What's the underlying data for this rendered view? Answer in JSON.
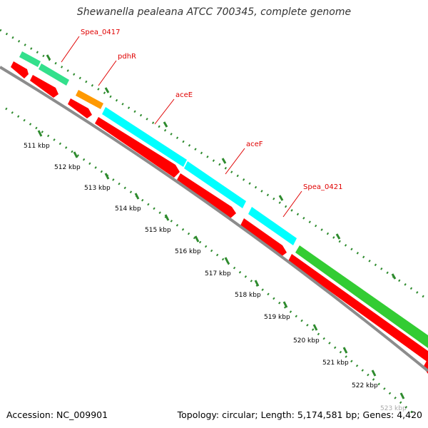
{
  "title": "Shewanella pealeana ATCC 700345, complete genome",
  "footer": {
    "accession": "Accession: NC_009901",
    "summary": "Topology: circular; Length: 5,174,581 bp; Genes: 4,420"
  },
  "gene_labels": [
    {
      "name": "Spea_0417"
    },
    {
      "name": "pdhR"
    },
    {
      "name": "aceE"
    },
    {
      "name": "aceF"
    },
    {
      "name": "Spea_0421"
    }
  ],
  "scale_labels": [
    "511 kbp",
    "512 kbp",
    "513 kbp",
    "514 kbp",
    "515 kbp",
    "516 kbp",
    "517 kbp",
    "518 kbp",
    "519 kbp",
    "520 kbp",
    "521 kbp",
    "522 kbp",
    "523 kbp"
  ],
  "colors": {
    "backbone": "#8c8c8c",
    "cds": "#ff0000",
    "gene_mint": "#33e08c",
    "gene_orange": "#ff9900",
    "gene_cyan": "#00ffff",
    "gene_green": "#33cc33",
    "ticks": "#2e8b2e",
    "label": "#e00000"
  }
}
